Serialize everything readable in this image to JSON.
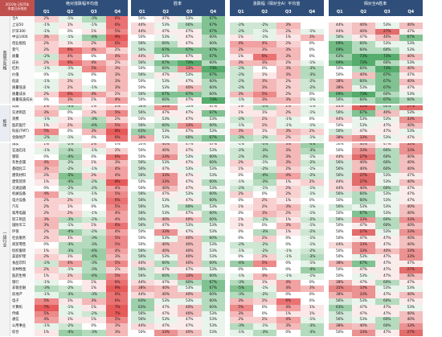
{
  "header": {
    "corner_line1": "2010年-2025年",
    "corner_line2": "季度日历效应",
    "blocks": [
      {
        "title": "绝对涨跌幅平均值",
        "cols": [
          "Q1",
          "Q2",
          "Q3",
          "Q4"
        ]
      },
      {
        "title": "胜率",
        "cols": [
          "Q1",
          "Q2",
          "Q3",
          "Q4"
        ]
      },
      {
        "title": "涨跌幅（相对全A）平均值",
        "cols": [
          "Q1",
          "Q2",
          "Q3",
          "Q4"
        ]
      },
      {
        "title": "相对全A胜率",
        "cols": [
          "Q1",
          "Q2",
          "Q3",
          "Q4"
        ]
      }
    ]
  },
  "groups": [
    {
      "label": "宽基&风格",
      "start": 0,
      "count": 14
    },
    {
      "label": "板块",
      "start": 14,
      "count": 6
    },
    {
      "label": "一级行业",
      "start": 20,
      "count": 31
    }
  ],
  "chart_data": {
    "type": "table",
    "columns": [
      "绝对涨跌幅平均值 Q1",
      "Q2",
      "Q3",
      "Q4",
      "胜率 Q1",
      "Q2",
      "Q3",
      "Q4",
      "涨跌幅（相对全A）平均值 Q1",
      "Q2",
      "Q3",
      "Q4",
      "相对全A胜率 Q1",
      "Q2",
      "Q3",
      "Q4"
    ],
    "rows": [
      {
        "name": "全A",
        "v": [
          "2%",
          "-1%",
          "-3%",
          "6%",
          "50%",
          "47%",
          "53%",
          "67%",
          "",
          "",
          "",
          "",
          "",
          "",
          "",
          ""
        ]
      },
      {
        "name": "上证50",
        "v": [
          "-1%",
          "1%",
          "-1%",
          "6%",
          "44%",
          "53%",
          "60%",
          "67%",
          "-2%",
          "-2%",
          "3%",
          "",
          "44%",
          "40%",
          "53%",
          "40%"
        ]
      },
      {
        "name": "沪深300",
        "v": [
          "-1%",
          "0%",
          "1%",
          "5%",
          "44%",
          "47%",
          "47%",
          "67%",
          "-2%",
          "-1%",
          "2%",
          "-1%",
          "44%",
          "40%",
          "27%",
          "47%"
        ]
      },
      {
        "name": "中证1000",
        "v": [
          "3%",
          "-1%",
          "-4%",
          "9%",
          "50%",
          "53%",
          "47%",
          "60%",
          "1%",
          "-1%",
          "1%",
          "3%",
          "56%",
          "47%",
          "40%",
          "67%"
        ]
      },
      {
        "name": "创业板指",
        "v": [
          "2%",
          "1%",
          "2%",
          "6%",
          "56%",
          "60%",
          "47%",
          "60%",
          "4%",
          "4%",
          "2%",
          "0%",
          "69%",
          "60%",
          "53%",
          "53%"
        ]
      },
      {
        "name": "景气",
        "v": [
          "2%",
          "6%",
          "4%",
          "2%",
          "56%",
          "67%",
          "67%",
          "67%",
          "3%",
          "3%",
          "3%",
          "0%",
          "69%",
          "60%",
          "60%",
          "53%"
        ]
      },
      {
        "name": "质量",
        "v": [
          "-2%",
          "4%",
          "0%",
          "4%",
          "44%",
          "53%",
          "47%",
          "67%",
          "1%",
          "6%",
          "3%",
          "0%",
          "63%",
          "73%",
          "73%",
          "40%"
        ]
      },
      {
        "name": "成长",
        "v": [
          "2%",
          "6%",
          "4%",
          "2%",
          "56%",
          "67%",
          "73%",
          "60%",
          "3%",
          "3%",
          "2%",
          "-1%",
          "69%",
          "73%",
          "60%",
          "53%"
        ]
      },
      {
        "name": "红利",
        "v": [
          "-1%",
          "-1%",
          "5%",
          "3%",
          "50%",
          "60%",
          "33%",
          "73%",
          "-2%",
          "0%",
          "3%",
          "-3%",
          "50%",
          "60%",
          "73%",
          "40%"
        ]
      },
      {
        "name": "价值",
        "v": [
          "0%",
          "-1%",
          "0%",
          "3%",
          "56%",
          "47%",
          "53%",
          "67%",
          "-2%",
          "1%",
          "3%",
          "-3%",
          "50%",
          "40%",
          "67%",
          "47%"
        ]
      },
      {
        "name": "低波",
        "v": [
          "-1%",
          "2%",
          "0%",
          "3%",
          "50%",
          "53%",
          "47%",
          "60%",
          "-2%",
          "3%",
          "2%",
          "-2%",
          "38%",
          "60%",
          "67%",
          "40%"
        ]
      },
      {
        "name": "质量低波",
        "v": [
          "-1%",
          "2%",
          "-1%",
          "3%",
          "50%",
          "53%",
          "40%",
          "60%",
          "-2%",
          "3%",
          "2%",
          "-2%",
          "38%",
          "53%",
          "67%",
          "47%"
        ]
      },
      {
        "name": "质量成长",
        "v": [
          "2%",
          "6%",
          "4%",
          "2%",
          "56%",
          "67%",
          "67%",
          "60%",
          "3%",
          "5%",
          "2%",
          "0%",
          "69%",
          "73%",
          "60%",
          "53%"
        ]
      },
      {
        "name": "质量低波成长",
        "v": [
          "0%",
          "3%",
          "1%",
          "4%",
          "50%",
          "60%",
          "47%",
          "73%",
          "-1%",
          "3%",
          "3%",
          "-1%",
          "56%",
          "60%",
          "67%",
          "60%"
        ]
      },
      {
        "name": "周期",
        "v": [
          "2%",
          "-3%",
          "1%",
          "2%",
          "56%",
          "33%",
          "53%",
          "47%",
          "1%",
          "-3%",
          "2%",
          "-1%",
          "44%",
          "13%",
          "60%",
          "27%"
        ]
      },
      {
        "name": "先进制造",
        "v": [
          "3%",
          "0%",
          "2%",
          "5%",
          "56%",
          "47%",
          "47%",
          "67%",
          "1%",
          "1%",
          "2%",
          "-1%",
          "56%",
          "67%",
          "40%",
          "53%"
        ]
      },
      {
        "name": "消费",
        "v": [
          "-1%",
          "1%",
          "-3%",
          "2%",
          "50%",
          "53%",
          "47%",
          "53%",
          "-2%",
          "2%",
          "-1%",
          "0%",
          "44%",
          "53%",
          "53%",
          "33%"
        ]
      },
      {
        "name": "医药医疗",
        "v": [
          "1%",
          "2%",
          "-4%",
          "5%",
          "56%",
          "60%",
          "33%",
          "60%",
          "-1%",
          "2%",
          "-1%",
          "-1%",
          "50%",
          "53%",
          "47%",
          "40%"
        ]
      },
      {
        "name": "科技(TMT)",
        "v": [
          "5%",
          "0%",
          "3%",
          "8%",
          "63%",
          "53%",
          "47%",
          "53%",
          "3%",
          "1%",
          "3%",
          "2%",
          "56%",
          "47%",
          "47%",
          "53%"
        ]
      },
      {
        "name": "金融地产",
        "v": [
          "-2%",
          "-1%",
          "0%",
          "6%",
          "38%",
          "53%",
          "60%",
          "67%",
          "-3%",
          "-2%",
          "2%",
          "-1%",
          "38%",
          "33%",
          "53%",
          "47%"
        ]
      },
      {
        "name": "煤炭",
        "v": [
          "1%",
          "-2%",
          "2%",
          "0%",
          "50%",
          "40%",
          "47%",
          "47%",
          "-1%",
          "-3%",
          "3%",
          "-4%",
          "50%",
          "40%",
          "47%",
          "33%"
        ]
      },
      {
        "name": "石油石化",
        "v": [
          "-1%",
          "-3%",
          "-1%",
          "2%",
          "50%",
          "40%",
          "47%",
          "53%",
          "-2%",
          "-3%",
          "3%",
          "-3%",
          "50%",
          "33%",
          "60%",
          "33%"
        ]
      },
      {
        "name": "钢铁",
        "v": [
          "0%",
          "-4%",
          "0%",
          "6%",
          "50%",
          "33%",
          "53%",
          "60%",
          "-2%",
          "-3%",
          "3%",
          "-1%",
          "44%",
          "27%",
          "60%",
          "40%"
        ]
      },
      {
        "name": "有色金属",
        "v": [
          "4%",
          "-2%",
          "1%",
          "3%",
          "56%",
          "53%",
          "47%",
          "60%",
          "2%",
          "-1%",
          "3%",
          "-2%",
          "56%",
          "40%",
          "60%",
          "40%"
        ]
      },
      {
        "name": "基础化工",
        "v": [
          "3%",
          "-2%",
          "-1%",
          "4%",
          "56%",
          "47%",
          "53%",
          "53%",
          "1%",
          "-2%",
          "2%",
          "-1%",
          "56%",
          "40%",
          "60%",
          "40%"
        ]
      },
      {
        "name": "建筑材料",
        "v": [
          "2%",
          "-5%",
          "2%",
          "4%",
          "56%",
          "33%",
          "47%",
          "53%",
          "0%",
          "-4%",
          "4%",
          "-2%",
          "56%",
          "27%",
          "53%",
          "47%"
        ]
      },
      {
        "name": "建筑装饰",
        "v": [
          "1%",
          "-4%",
          "-2%",
          "8%",
          "50%",
          "33%",
          "47%",
          "60%",
          "-1%",
          "-3%",
          "1%",
          "2%",
          "44%",
          "27%",
          "53%",
          "40%"
        ]
      },
      {
        "name": "交通运输",
        "v": [
          "0%",
          "-2%",
          "-2%",
          "4%",
          "50%",
          "40%",
          "47%",
          "53%",
          "-2%",
          "-1%",
          "2%",
          "-1%",
          "44%",
          "40%",
          "60%",
          "47%"
        ]
      },
      {
        "name": "机械设备",
        "v": [
          "4%",
          "-1%",
          "-1%",
          "5%",
          "56%",
          "47%",
          "53%",
          "60%",
          "2%",
          "0%",
          "2%",
          "-1%",
          "56%",
          "60%",
          "53%",
          "47%"
        ]
      },
      {
        "name": "电力设备",
        "v": [
          "2%",
          "2%",
          "-1%",
          "6%",
          "56%",
          "53%",
          "47%",
          "60%",
          "0%",
          "2%",
          "1%",
          "0%",
          "50%",
          "60%",
          "53%",
          "47%"
        ]
      },
      {
        "name": "汽车",
        "v": [
          "2%",
          "1%",
          "0%",
          "5%",
          "56%",
          "53%",
          "60%",
          "53%",
          "1%",
          "2%",
          "3%",
          "-1%",
          "56%",
          "53%",
          "53%",
          "40%"
        ]
      },
      {
        "name": "家用电器",
        "v": [
          "2%",
          "2%",
          "-1%",
          "4%",
          "56%",
          "53%",
          "47%",
          "60%",
          "0%",
          "3%",
          "2%",
          "-1%",
          "50%",
          "67%",
          "53%",
          "40%"
        ]
      },
      {
        "name": "轻工制造",
        "v": [
          "3%",
          "-3%",
          "-2%",
          "4%",
          "56%",
          "40%",
          "40%",
          "60%",
          "1%",
          "-2%",
          "1%",
          "-2%",
          "56%",
          "33%",
          "60%",
          "33%"
        ]
      },
      {
        "name": "国防军工",
        "v": [
          "3%",
          "-1%",
          "1%",
          "6%",
          "56%",
          "47%",
          "53%",
          "53%",
          "1%",
          "0%",
          "3%",
          "-1%",
          "50%",
          "47%",
          "60%",
          "40%"
        ]
      },
      {
        "name": "环保",
        "v": [
          "2%",
          "-4%",
          "-2%",
          "4%",
          "50%",
          "33%",
          "47%",
          "53%",
          "0%",
          "-3%",
          "1%",
          "-2%",
          "50%",
          "27%",
          "53%",
          "33%"
        ]
      },
      {
        "name": "社会服务",
        "v": [
          "2%",
          "1%",
          "-3%",
          "5%",
          "50%",
          "53%",
          "40%",
          "60%",
          "0%",
          "2%",
          "0%",
          "-1%",
          "50%",
          "47%",
          "47%",
          "40%"
        ]
      },
      {
        "name": "商贸零售",
        "v": [
          "0%",
          "-3%",
          "-3%",
          "5%",
          "50%",
          "40%",
          "40%",
          "53%",
          "-2%",
          "-2%",
          "0%",
          "-1%",
          "44%",
          "33%",
          "47%",
          "40%"
        ]
      },
      {
        "name": "纺织服饰",
        "v": [
          "1%",
          "-3%",
          "-4%",
          "4%",
          "56%",
          "40%",
          "40%",
          "53%",
          "-1%",
          "-2%",
          "-1%",
          "-2%",
          "50%",
          "33%",
          "40%",
          "33%"
        ]
      },
      {
        "name": "美容护理",
        "v": [
          "2%",
          "1%",
          "-4%",
          "3%",
          "56%",
          "53%",
          "40%",
          "53%",
          "0%",
          "2%",
          "-1%",
          "-3%",
          "50%",
          "53%",
          "47%",
          "33%"
        ]
      },
      {
        "name": "食品饮料",
        "v": [
          "-2%",
          "4%",
          "-3%",
          "5%",
          "44%",
          "60%",
          "40%",
          "60%",
          "-4%",
          "5%",
          "0%",
          "-1%",
          "38%",
          "67%",
          "47%",
          "47%"
        ]
      },
      {
        "name": "农林牧渔",
        "v": [
          "2%",
          "-1%",
          "-3%",
          "2%",
          "56%",
          "47%",
          "47%",
          "53%",
          "0%",
          "0%",
          "0%",
          "-4%",
          "50%",
          "47%",
          "47%",
          "27%"
        ]
      },
      {
        "name": "医药生物",
        "v": [
          "1%",
          "2%",
          "-4%",
          "5%",
          "56%",
          "60%",
          "33%",
          "60%",
          "-1%",
          "3%",
          "-1%",
          "-1%",
          "50%",
          "53%",
          "47%",
          "40%"
        ]
      },
      {
        "name": "银行",
        "v": [
          "-1%",
          "0%",
          "1%",
          "6%",
          "44%",
          "47%",
          "60%",
          "67%",
          "-3%",
          "1%",
          "4%",
          "0%",
          "38%",
          "47%",
          "60%",
          "47%"
        ]
      },
      {
        "name": "非银金融",
        "v": [
          "-3%",
          "-2%",
          "1%",
          "9%",
          "38%",
          "40%",
          "53%",
          "67%",
          "-5%",
          "-1%",
          "4%",
          "3%",
          "31%",
          "33%",
          "53%",
          "53%"
        ]
      },
      {
        "name": "房地产",
        "v": [
          "-1%",
          "-3%",
          "-3%",
          "6%",
          "44%",
          "40%",
          "40%",
          "60%",
          "-3%",
          "-2%",
          "0%",
          "0%",
          "38%",
          "33%",
          "47%",
          "40%"
        ]
      },
      {
        "name": "电子",
        "v": [
          "5%",
          "1%",
          "3%",
          "6%",
          "63%",
          "53%",
          "53%",
          "60%",
          "3%",
          "2%",
          "6%",
          "0%",
          "56%",
          "53%",
          "60%",
          "47%"
        ]
      },
      {
        "name": "计算机",
        "v": [
          "7%",
          "-1%",
          "1%",
          "7%",
          "63%",
          "47%",
          "40%",
          "60%",
          "5%",
          "0%",
          "4%",
          "1%",
          "63%",
          "47%",
          "47%",
          "53%"
        ]
      },
      {
        "name": "传媒",
        "v": [
          "5%",
          "-1%",
          "-2%",
          "7%",
          "56%",
          "47%",
          "40%",
          "53%",
          "3%",
          "0%",
          "1%",
          "1%",
          "56%",
          "47%",
          "47%",
          "40%"
        ]
      },
      {
        "name": "通信",
        "v": [
          "4%",
          "1%",
          "1%",
          "5%",
          "56%",
          "53%",
          "47%",
          "53%",
          "2%",
          "2%",
          "4%",
          "-1%",
          "56%",
          "53%",
          "60%",
          "40%"
        ]
      },
      {
        "name": "公用事业",
        "v": [
          "-1%",
          "-2%",
          "0%",
          "3%",
          "44%",
          "47%",
          "47%",
          "53%",
          "-3%",
          "-1%",
          "3%",
          "-3%",
          "38%",
          "40%",
          "60%",
          "33%"
        ]
      },
      {
        "name": "综合",
        "v": [
          "1%",
          "-4%",
          "-3%",
          "3%",
          "50%",
          "33%",
          "40%",
          "53%",
          "-1%",
          "-3%",
          "0%",
          "-3%",
          "50%",
          "33%",
          "47%",
          "27%"
        ]
      }
    ]
  }
}
